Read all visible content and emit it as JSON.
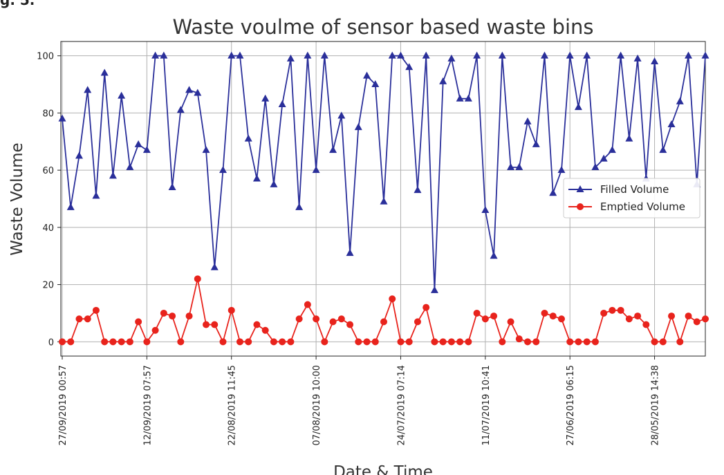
{
  "corner_mark": "g. 5.",
  "chart_data": {
    "type": "line",
    "title": "Waste voulme of sensor based waste bins",
    "xlabel": "Date & Time",
    "ylabel": "Waste Volume",
    "ylim": [
      -5,
      105
    ],
    "yticks": [
      0,
      20,
      40,
      60,
      80,
      100
    ],
    "grid": true,
    "legend_position": "center-right",
    "x_count": 77,
    "x_ticks": [
      {
        "index": 0,
        "label": "27/09/2019 00:57"
      },
      {
        "index": 10,
        "label": "12/09/2019 07:57"
      },
      {
        "index": 20,
        "label": "22/08/2019 11:45"
      },
      {
        "index": 30,
        "label": "07/08/2019 10:00"
      },
      {
        "index": 40,
        "label": "24/07/2019 07:14"
      },
      {
        "index": 50,
        "label": "11/07/2019 10:41"
      },
      {
        "index": 60,
        "label": "27/06/2019 06:15"
      },
      {
        "index": 70,
        "label": "28/05/2019 14:38"
      }
    ],
    "series": [
      {
        "name": "Filled Volume",
        "color": "#2a2f9a",
        "marker": "triangle",
        "values": [
          78,
          47,
          65,
          88,
          51,
          94,
          58,
          86,
          61,
          69,
          67,
          100,
          100,
          54,
          81,
          88,
          87,
          67,
          26,
          60,
          100,
          100,
          71,
          57,
          85,
          55,
          83,
          99,
          47,
          100,
          60,
          100,
          67,
          79,
          31,
          75,
          93,
          90,
          49,
          100,
          100,
          96,
          53,
          100,
          18,
          91,
          99,
          85,
          85,
          100,
          46,
          30,
          100,
          61,
          61,
          77,
          69,
          100,
          52,
          60,
          100,
          82,
          100,
          61,
          64,
          67,
          100,
          71,
          99,
          57,
          98,
          67,
          76,
          84,
          100,
          55,
          100
        ]
      },
      {
        "name": "Emptied Volume",
        "color": "#e8231c",
        "marker": "circle",
        "values": [
          0,
          0,
          8,
          8,
          11,
          0,
          0,
          0,
          0,
          7,
          0,
          4,
          10,
          9,
          0,
          9,
          22,
          6,
          6,
          0,
          11,
          0,
          0,
          6,
          4,
          0,
          0,
          0,
          8,
          13,
          8,
          0,
          7,
          8,
          6,
          0,
          0,
          0,
          7,
          15,
          0,
          0,
          7,
          12,
          0,
          0,
          0,
          0,
          0,
          10,
          8,
          9,
          0,
          7,
          1,
          0,
          0,
          10,
          9,
          8,
          0,
          0,
          0,
          0,
          10,
          11,
          11,
          8,
          9,
          6,
          0,
          0,
          9,
          0,
          9,
          7,
          8
        ]
      }
    ]
  }
}
